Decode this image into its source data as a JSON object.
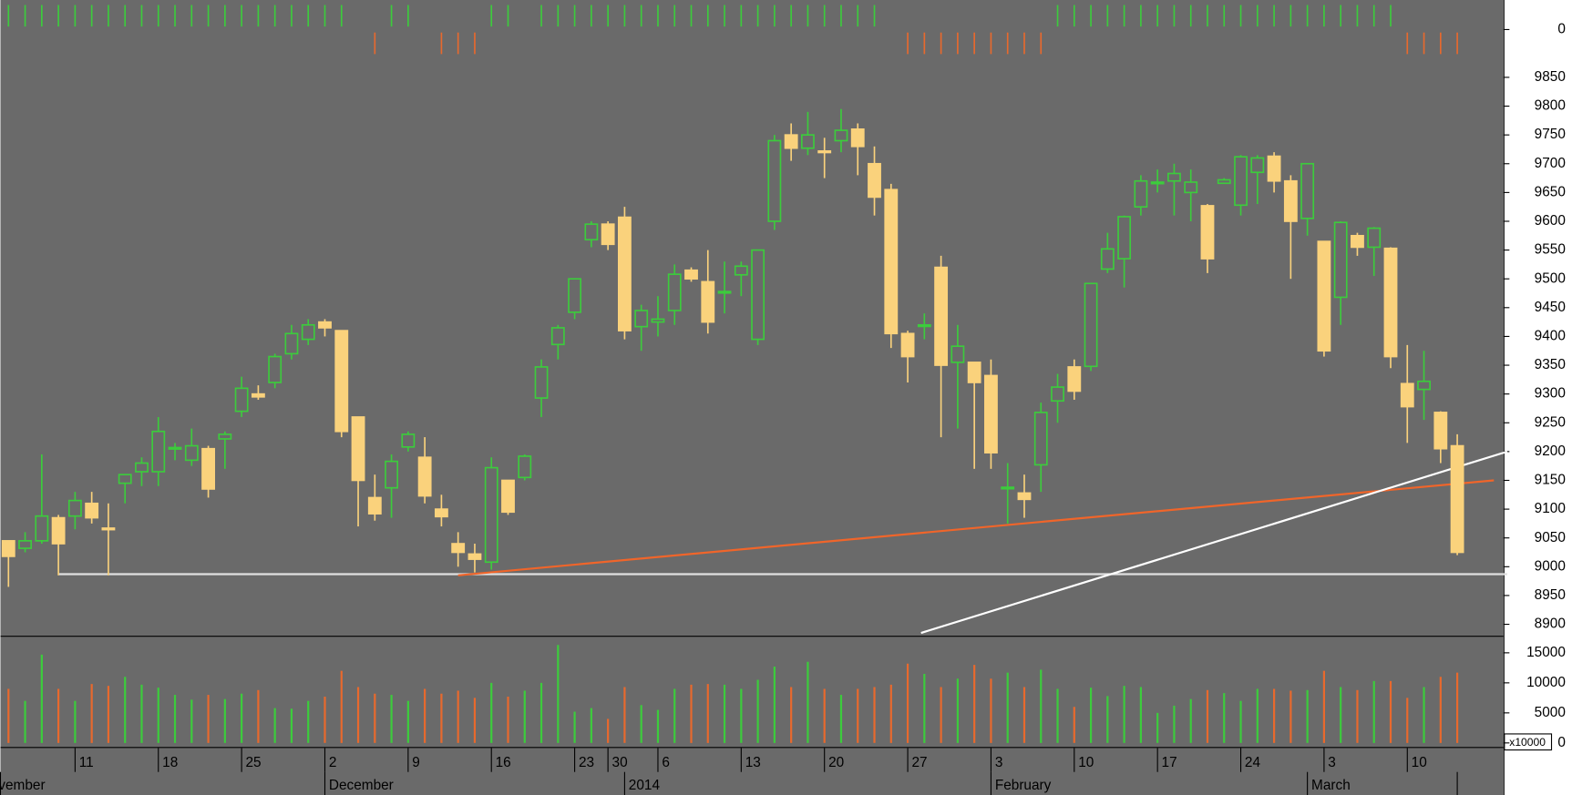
{
  "chart_data": {
    "type": "candlestick",
    "categories": [
      null,
      null,
      null,
      null,
      "11",
      null,
      null,
      null,
      null,
      "18",
      null,
      null,
      null,
      null,
      "25",
      null,
      null,
      null,
      null,
      "2",
      null,
      null,
      null,
      null,
      "9",
      null,
      null,
      null,
      null,
      "16",
      null,
      null,
      null,
      null,
      "23",
      null,
      "30",
      null,
      null,
      "6",
      null,
      null,
      null,
      null,
      "13",
      null,
      null,
      null,
      null,
      "20",
      null,
      null,
      null,
      null,
      "27",
      null,
      null,
      null,
      null,
      "3",
      null,
      null,
      null,
      null,
      "10",
      null,
      null,
      null,
      null,
      "17",
      null,
      null,
      null,
      null,
      "24",
      null,
      null,
      null,
      null,
      "3",
      null,
      null,
      null,
      null,
      "10",
      null,
      null,
      null
    ],
    "months": [
      "vember",
      null,
      null,
      null,
      null,
      null,
      null,
      null,
      null,
      null,
      null,
      null,
      null,
      null,
      null,
      null,
      null,
      null,
      null,
      "December",
      null,
      null,
      null,
      null,
      null,
      null,
      null,
      null,
      null,
      null,
      null,
      null,
      null,
      null,
      null,
      null,
      null,
      "2014",
      null,
      null,
      null,
      null,
      null,
      null,
      null,
      null,
      null,
      null,
      null,
      null,
      null,
      null,
      null,
      null,
      null,
      null,
      null,
      null,
      null,
      "February",
      null,
      null,
      null,
      null,
      null,
      null,
      null,
      null,
      null,
      null,
      null,
      null,
      null,
      null,
      null,
      null,
      null,
      null,
      "March",
      null,
      null,
      null,
      null,
      null,
      null,
      null,
      null
    ],
    "open": [
      9045,
      9032,
      9045,
      9085,
      9088,
      9110,
      9067,
      9145,
      9165,
      9165,
      9205,
      9185,
      9205,
      9222,
      9270,
      9300,
      9320,
      9370,
      9395,
      9425,
      9410,
      9260,
      9120,
      9137,
      9208,
      9190,
      9100,
      9040,
      9022,
      9008,
      9150,
      9155,
      9293,
      9386,
      9442,
      9568,
      9595,
      9607,
      9417,
      9425,
      9445,
      9515,
      9495,
      9477,
      9507,
      9395,
      9600,
      9750,
      9727,
      9722,
      9740,
      9760,
      9700,
      9655,
      9405,
      9418,
      9520,
      9355,
      9355,
      9332,
      9138,
      9128,
      9177,
      9288,
      9347,
      9348,
      9517,
      9535,
      9625,
      9667,
      9670,
      9650,
      9627,
      9666,
      9628,
      9685,
      9713,
      9670,
      9605,
      9565,
      9468,
      9575,
      9555,
      9553,
      9318,
      9308,
      9268,
      9210
    ],
    "high": [
      9045,
      9060,
      9195,
      9090,
      9130,
      9130,
      9110,
      9160,
      9190,
      9260,
      9215,
      9240,
      9210,
      9235,
      9330,
      9315,
      9370,
      9420,
      9430,
      9430,
      9410,
      9260,
      9160,
      9195,
      9235,
      9225,
      9125,
      9060,
      9040,
      9190,
      9150,
      9195,
      9360,
      9420,
      9500,
      9600,
      9600,
      9625,
      9455,
      9470,
      9525,
      9520,
      9550,
      9530,
      9530,
      9550,
      9750,
      9770,
      9790,
      9745,
      9795,
      9770,
      9730,
      9665,
      9410,
      9440,
      9540,
      9420,
      9355,
      9360,
      9180,
      9160,
      9285,
      9335,
      9360,
      9492,
      9580,
      9610,
      9680,
      9690,
      9700,
      9690,
      9630,
      9675,
      9715,
      9715,
      9720,
      9680,
      9700,
      9565,
      9600,
      9580,
      9590,
      9555,
      9385,
      9375,
      9270,
      9230
    ],
    "low": [
      8965,
      9025,
      9040,
      8985,
      9065,
      9075,
      8985,
      9110,
      9140,
      9140,
      9185,
      9175,
      9120,
      9170,
      9260,
      9290,
      9310,
      9360,
      9385,
      9400,
      9225,
      9070,
      9080,
      9085,
      9200,
      9110,
      9070,
      9000,
      8990,
      8995,
      9090,
      9150,
      9260,
      9360,
      9430,
      9555,
      9550,
      9395,
      9375,
      9400,
      9420,
      9495,
      9405,
      9440,
      9470,
      9385,
      9585,
      9705,
      9715,
      9675,
      9720,
      9680,
      9610,
      9380,
      9320,
      9395,
      9225,
      9240,
      9170,
      9170,
      9075,
      9085,
      9130,
      9250,
      9290,
      9340,
      9510,
      9485,
      9610,
      9650,
      9610,
      9600,
      9510,
      9665,
      9610,
      9630,
      9650,
      9500,
      9575,
      9365,
      9420,
      9540,
      9505,
      9345,
      9215,
      9255,
      9180,
      9020
    ],
    "close": [
      9018,
      9045,
      9088,
      9040,
      9115,
      9085,
      9065,
      9160,
      9180,
      9235,
      9207,
      9210,
      9135,
      9230,
      9310,
      9295,
      9365,
      9405,
      9420,
      9415,
      9235,
      9150,
      9092,
      9183,
      9230,
      9123,
      9087,
      9025,
      9013,
      9172,
      9095,
      9192,
      9347,
      9415,
      9500,
      9595,
      9560,
      9410,
      9445,
      9430,
      9508,
      9500,
      9425,
      9478,
      9522,
      9550,
      9740,
      9727,
      9750,
      9720,
      9758,
      9730,
      9642,
      9405,
      9365,
      9420,
      9350,
      9383,
      9320,
      9198,
      9138,
      9117,
      9268,
      9312,
      9305,
      9492,
      9552,
      9608,
      9670,
      9668,
      9683,
      9668,
      9535,
      9672,
      9712,
      9710,
      9670,
      9600,
      9700,
      9375,
      9598,
      9555,
      9588,
      9365,
      9278,
      9322,
      9205,
      9025
    ],
    "ylim": [
      8880,
      9880
    ],
    "yticks": [
      8900,
      8950,
      9000,
      9050,
      9100,
      9150,
      9200,
      9250,
      9300,
      9350,
      9400,
      9450,
      9500,
      9550,
      9600,
      9650,
      9700,
      9750,
      9800,
      9850
    ],
    "colors": {
      "up": "#3ccc3c",
      "down": "#fad27c",
      "down_volume": "#e8692d"
    },
    "lines": [
      {
        "color": "#e0e0e0",
        "x": [
          3,
          90
        ],
        "y": [
          8987,
          8987
        ]
      },
      {
        "color": "#f0652a",
        "x": [
          27,
          89.2
        ],
        "y": [
          8985,
          9150
        ]
      },
      {
        "color": "#ffffff",
        "x": [
          54.8,
          90
        ],
        "y": [
          8885,
          9200
        ]
      }
    ],
    "volume": {
      "values": [
        9000,
        7000,
        14700,
        9000,
        7000,
        9800,
        9500,
        11000,
        9700,
        9200,
        8000,
        7200,
        8000,
        7300,
        8200,
        8800,
        5800,
        5700,
        7000,
        7700,
        12000,
        9300,
        8200,
        8000,
        7000,
        9000,
        8200,
        8700,
        7500,
        10000,
        7700,
        8700,
        10000,
        16300,
        5200,
        5800,
        4000,
        9300,
        6300,
        5500,
        9000,
        9700,
        9800,
        9700,
        9000,
        10500,
        12700,
        9300,
        13500,
        9000,
        8000,
        9000,
        9300,
        9700,
        13200,
        11500,
        9300,
        10700,
        13000,
        10700,
        11700,
        9300,
        12200,
        9000,
        6000,
        9200,
        7800,
        9500,
        9300,
        5000,
        6200,
        7300,
        8800,
        8300,
        7000,
        9000,
        9000,
        8700,
        8800,
        12000,
        9300,
        8800,
        10300,
        10300,
        7500,
        9300,
        11000,
        11700
      ],
      "ylim": [
        0,
        17000
      ],
      "yticks": [
        0,
        5000,
        10000,
        15000
      ],
      "multiplier_label": "x10000"
    },
    "signal": {
      "values": [
        1,
        1,
        1,
        1,
        1,
        1,
        1,
        1,
        1,
        1,
        1,
        1,
        1,
        1,
        1,
        1,
        1,
        1,
        1,
        1,
        1,
        null,
        -1,
        1,
        1,
        null,
        -1,
        -1,
        -1,
        1,
        1,
        null,
        1,
        1,
        1,
        1,
        1,
        1,
        1,
        1,
        1,
        1,
        1,
        1,
        1,
        1,
        1,
        1,
        1,
        1,
        1,
        1,
        1,
        null,
        -1,
        -1,
        -1,
        -1,
        -1,
        -1,
        -1,
        -1,
        -1,
        1,
        1,
        1,
        1,
        1,
        1,
        1,
        1,
        1,
        1,
        1,
        1,
        1,
        1,
        1,
        1,
        1,
        1,
        1,
        1,
        1,
        -1,
        -1,
        -1,
        -1
      ],
      "ylim": [
        -1,
        1
      ],
      "yticks": [
        0
      ]
    }
  }
}
